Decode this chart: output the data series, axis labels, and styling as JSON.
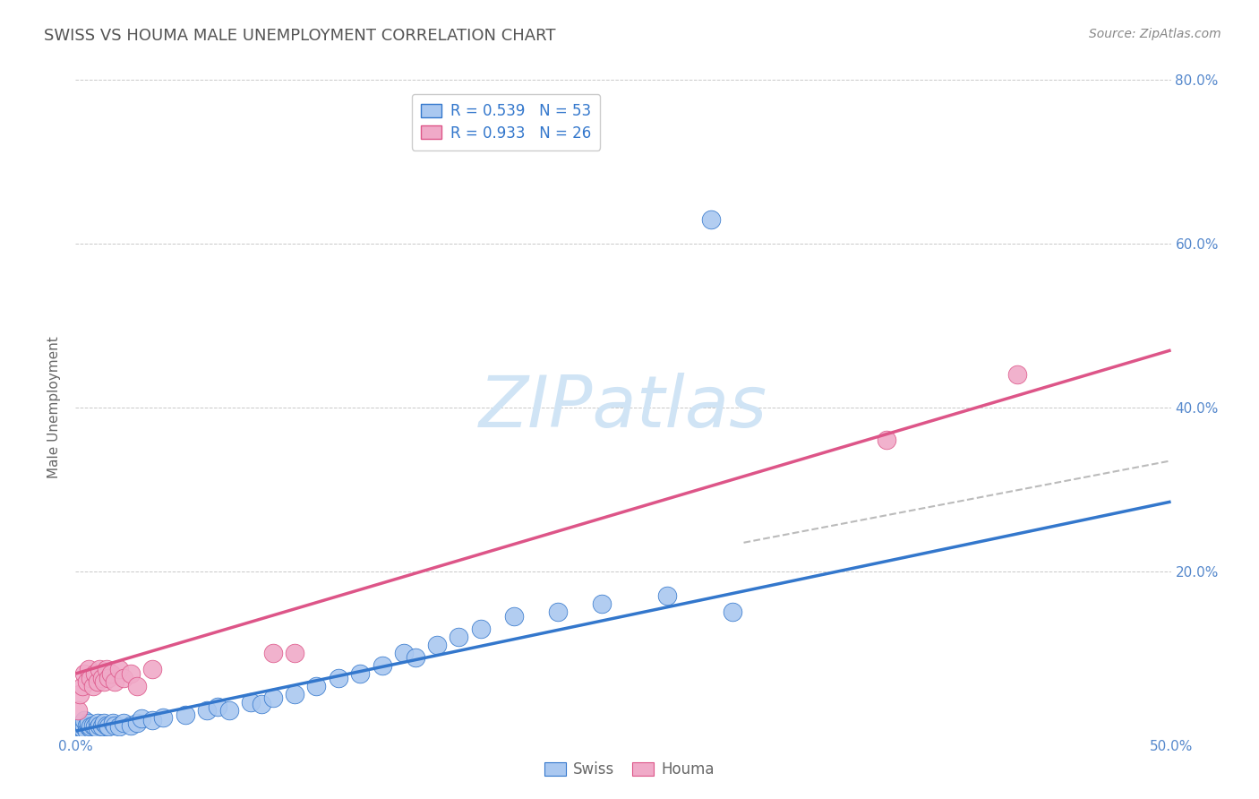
{
  "title": "SWISS VS HOUMA MALE UNEMPLOYMENT CORRELATION CHART",
  "source": "Source: ZipAtlas.com",
  "ylabel": "Male Unemployment",
  "xlim": [
    0.0,
    0.5
  ],
  "ylim": [
    0.0,
    0.8
  ],
  "xticks": [
    0.0,
    0.1,
    0.2,
    0.3,
    0.4,
    0.5
  ],
  "yticks": [
    0.0,
    0.2,
    0.4,
    0.6,
    0.8
  ],
  "xticklabels": [
    "0.0%",
    "",
    "",
    "",
    "",
    "50.0%"
  ],
  "yticklabels": [
    "",
    "20.0%",
    "40.0%",
    "60.0%",
    "80.0%"
  ],
  "swiss_color": "#aac8f0",
  "houma_color": "#f0aac8",
  "swiss_line_color": "#3377cc",
  "houma_line_color": "#dd5588",
  "ref_line_color": "#aaaaaa",
  "swiss_R": 0.539,
  "swiss_N": 53,
  "houma_R": 0.933,
  "houma_N": 26,
  "background_color": "#ffffff",
  "grid_color": "#bbbbbb",
  "title_color": "#555555",
  "axis_label_color": "#666666",
  "tick_label_color": "#5588cc",
  "watermark": "ZIPatlas",
  "watermark_color": "#d0e4f5",
  "swiss_x": [
    0.001,
    0.002,
    0.003,
    0.003,
    0.004,
    0.004,
    0.005,
    0.005,
    0.006,
    0.006,
    0.007,
    0.007,
    0.008,
    0.009,
    0.01,
    0.01,
    0.011,
    0.012,
    0.013,
    0.014,
    0.015,
    0.017,
    0.018,
    0.02,
    0.022,
    0.025,
    0.028,
    0.03,
    0.035,
    0.04,
    0.05,
    0.06,
    0.065,
    0.07,
    0.08,
    0.085,
    0.09,
    0.1,
    0.11,
    0.12,
    0.13,
    0.14,
    0.15,
    0.155,
    0.165,
    0.175,
    0.185,
    0.2,
    0.22,
    0.24,
    0.27,
    0.3,
    0.29
  ],
  "swiss_y": [
    0.01,
    0.012,
    0.008,
    0.015,
    0.01,
    0.018,
    0.012,
    0.005,
    0.01,
    0.015,
    0.008,
    0.01,
    0.012,
    0.01,
    0.015,
    0.008,
    0.012,
    0.01,
    0.015,
    0.012,
    0.01,
    0.015,
    0.012,
    0.01,
    0.015,
    0.012,
    0.015,
    0.02,
    0.018,
    0.022,
    0.025,
    0.03,
    0.035,
    0.03,
    0.04,
    0.038,
    0.045,
    0.05,
    0.06,
    0.07,
    0.075,
    0.085,
    0.1,
    0.095,
    0.11,
    0.12,
    0.13,
    0.145,
    0.15,
    0.16,
    0.17,
    0.15,
    0.63
  ],
  "houma_x": [
    0.001,
    0.002,
    0.003,
    0.004,
    0.005,
    0.006,
    0.007,
    0.008,
    0.009,
    0.01,
    0.011,
    0.012,
    0.013,
    0.014,
    0.015,
    0.016,
    0.018,
    0.02,
    0.022,
    0.025,
    0.028,
    0.035,
    0.09,
    0.1,
    0.37,
    0.43
  ],
  "houma_y": [
    0.03,
    0.05,
    0.06,
    0.075,
    0.065,
    0.08,
    0.07,
    0.06,
    0.075,
    0.065,
    0.08,
    0.07,
    0.065,
    0.08,
    0.07,
    0.075,
    0.065,
    0.08,
    0.07,
    0.075,
    0.06,
    0.08,
    0.1,
    0.1,
    0.36,
    0.44
  ],
  "ref_line_x": [
    0.305,
    0.5
  ],
  "ref_line_y": [
    0.235,
    0.335
  ]
}
